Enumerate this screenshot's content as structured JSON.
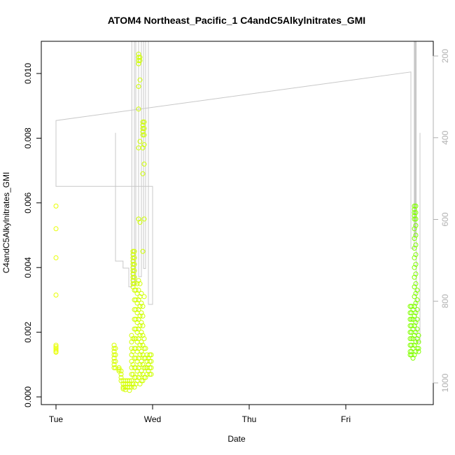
{
  "chart_data": {
    "type": "scatter",
    "title": "ATOM4 Northeast_Pacific_1 C4andC5Alkylnitrates_GMI",
    "xlabel": "Date",
    "ylabel": "C4andC5Alkylnitrates_GMI",
    "x_ticks": [
      "Tue",
      "Wed",
      "Thu",
      "Fri"
    ],
    "ylim": [
      -0.0002,
      0.011
    ],
    "y_ticks": [
      0.0,
      0.002,
      0.004,
      0.006,
      0.008,
      0.01
    ],
    "y_tick_labels": [
      "0.000",
      "0.002",
      "0.004",
      "0.006",
      "0.008",
      "0.010"
    ],
    "y2_ticks": [
      200,
      400,
      600,
      800,
      1000
    ],
    "y2_tick_labels": [
      "200",
      "400",
      "600",
      "800",
      "1000"
    ],
    "y2_reversed": true,
    "grid": false,
    "colors": {
      "points_start": "#e8ff00",
      "points_end": "#7fff00",
      "secondary_line": "#c8c8c8",
      "secondary_axis": "#b0b0b0"
    },
    "points": [
      {
        "t": "Tue 00:00",
        "v": [
          0.0059,
          0.0052,
          0.0043,
          0.00315,
          0.0016,
          0.00155,
          0.0015,
          0.00145,
          0.0014,
          0.00138
        ]
      },
      {
        "t": "Tue 14:26",
        "v": [
          0.0016,
          0.0015,
          0.0014,
          0.0013,
          0.0012,
          0.0011,
          0.001,
          0.0009
        ]
      },
      {
        "t": "Tue 14:47",
        "v": [
          0.0015,
          0.0013,
          0.0011,
          0.0009
        ]
      },
      {
        "t": "Tue 15:39",
        "v": [
          0.0009,
          0.00085,
          0.0008
        ]
      },
      {
        "t": "Tue 16:10",
        "v": [
          0.0008,
          0.0007,
          0.0006,
          0.0005
        ]
      },
      {
        "t": "Tue 16:42",
        "v": [
          0.0005,
          0.0004,
          0.0003,
          0.00025
        ]
      },
      {
        "t": "Tue 17:13",
        "v": [
          0.0005,
          0.0004,
          0.0003,
          0.00022
        ]
      },
      {
        "t": "Tue 17:44",
        "v": [
          0.0005,
          0.0004,
          0.0003
        ]
      },
      {
        "t": "Tue 18:16",
        "v": [
          0.0005,
          0.0004,
          0.0003,
          0.0002
        ]
      },
      {
        "t": "Tue 18:47",
        "v": [
          0.0019,
          0.0017,
          0.0015,
          0.0013,
          0.0011,
          0.0009,
          0.0007,
          0.0005,
          0.0003
        ]
      },
      {
        "t": "Tue 19:08",
        "v": [
          0.0045,
          0.0044,
          0.0043,
          0.0042,
          0.0041,
          0.004,
          0.0039,
          0.0038,
          0.0037,
          0.0036,
          0.0035,
          0.0034,
          0.0018,
          0.0014,
          0.001,
          0.0007,
          0.0004
        ]
      },
      {
        "t": "Tue 19:29",
        "v": [
          0.0045,
          0.0043,
          0.0041,
          0.0039,
          0.0037,
          0.0035,
          0.0033,
          0.003,
          0.0027,
          0.0024,
          0.0021,
          0.0018,
          0.0015,
          0.0012,
          0.0009,
          0.0006,
          0.0003
        ]
      },
      {
        "t": "Tue 19:50",
        "v": [
          0.0033,
          0.003,
          0.0027,
          0.0024,
          0.0021,
          0.0018,
          0.0015,
          0.0012,
          0.0009,
          0.0006,
          0.0004
        ]
      },
      {
        "t": "Tue 20:10",
        "v": [
          0.0035,
          0.0032,
          0.0029,
          0.0026,
          0.0023,
          0.002,
          0.0017,
          0.0014,
          0.0011,
          0.0008,
          0.0005
        ]
      },
      {
        "t": "Tue 20:31",
        "v": [
          0.0106,
          0.0105,
          0.0104,
          0.0103,
          0.0096,
          0.0089,
          0.0077,
          0.0055,
          0.0036,
          0.0033,
          0.003,
          0.0027,
          0.0024,
          0.0021,
          0.0018,
          0.0015,
          0.0012,
          0.0009,
          0.0006
        ]
      },
      {
        "t": "Tue 20:52",
        "v": [
          0.0105,
          0.0104,
          0.0098,
          0.0079,
          0.0054,
          0.0035,
          0.0031,
          0.0028,
          0.0025,
          0.0022,
          0.0019,
          0.0016,
          0.0013,
          0.001,
          0.0007,
          0.0004
        ]
      },
      {
        "t": "Tue 21:13",
        "v": [
          0.0032,
          0.0029,
          0.0026,
          0.0023,
          0.002,
          0.0017,
          0.0014,
          0.0011,
          0.0008,
          0.0005
        ]
      },
      {
        "t": "Tue 21:34",
        "v": [
          0.0085,
          0.0084,
          0.0083,
          0.0082,
          0.0081,
          0.0077,
          0.0069,
          0.0045,
          0.0028,
          0.0025,
          0.0022,
          0.0019,
          0.0016,
          0.0013,
          0.001,
          0.0007,
          0.0005
        ]
      },
      {
        "t": "Tue 21:55",
        "v": [
          0.0085,
          0.0083,
          0.0081,
          0.0078,
          0.0072,
          0.0055,
          0.0031,
          0.0018,
          0.0015,
          0.0012,
          0.0009,
          0.0006
        ]
      },
      {
        "t": "Tue 22:16",
        "v": [
          0.0015,
          0.0012,
          0.0009,
          0.0006
        ]
      },
      {
        "t": "Tue 22:37",
        "v": [
          0.0013,
          0.0011,
          0.0009,
          0.0007
        ]
      },
      {
        "t": "Tue 22:57",
        "v": [
          0.0012,
          0.001,
          0.0008
        ]
      },
      {
        "t": "Tue 23:18",
        "v": [
          0.0013,
          0.0011,
          0.0009,
          0.0007
        ]
      },
      {
        "t": "Tue 23:39",
        "v": [
          0.0013,
          0.0011,
          0.0009,
          0.0007
        ]
      },
      {
        "t": "Fri 16:00",
        "v": [
          0.0028,
          0.0026,
          0.0024,
          0.0022,
          0.002,
          0.0018,
          0.0016,
          0.0014,
          0.0013
        ]
      },
      {
        "t": "Fri 16:21",
        "v": [
          0.0028,
          0.0026,
          0.0024,
          0.0022,
          0.002,
          0.0018,
          0.0016,
          0.0014,
          0.0013
        ]
      },
      {
        "t": "Fri 16:42",
        "v": [
          0.0027,
          0.0024,
          0.0021,
          0.0018,
          0.0015,
          0.0012
        ]
      },
      {
        "t": "Fri 17:03",
        "v": [
          0.0059,
          0.0058,
          0.0057,
          0.0056,
          0.0055,
          0.0052,
          0.0049,
          0.0046,
          0.0043,
          0.004,
          0.0037,
          0.0034,
          0.0031,
          0.0028,
          0.0025,
          0.0022,
          0.0019,
          0.0016,
          0.0013
        ]
      },
      {
        "t": "Fri 17:23",
        "v": [
          0.0059,
          0.0057,
          0.0055,
          0.0053,
          0.005,
          0.0047,
          0.0044,
          0.0041,
          0.0038,
          0.0035,
          0.0032,
          0.0029,
          0.0026,
          0.0023,
          0.002,
          0.0017,
          0.0014
        ]
      },
      {
        "t": "Fri 17:44",
        "v": [
          0.0033,
          0.003,
          0.0027,
          0.0024,
          0.0021,
          0.0018,
          0.0015
        ]
      },
      {
        "t": "Fri 18:05",
        "v": [
          0.0019,
          0.0017,
          0.0015,
          0.0014
        ]
      }
    ],
    "secondary_line": [
      [
        "Tue 14:47",
        388
      ],
      [
        "Tue 14:47",
        702
      ],
      [
        "Tue 16:40",
        702
      ],
      [
        "Tue 16:40",
        719
      ],
      [
        "Tue 18:05",
        719
      ],
      [
        "Tue 18:05",
        765
      ],
      [
        "Tue 18:50",
        765
      ],
      [
        "Tue 18:50",
        100
      ],
      [
        "Tue 19:29",
        100
      ],
      [
        "Tue 19:29",
        760
      ],
      [
        "Tue 19:50",
        760
      ],
      [
        "Tue 19:50",
        100
      ],
      [
        "Tue 20:31",
        100
      ],
      [
        "Tue 20:31",
        740
      ],
      [
        "Tue 21:13",
        740
      ],
      [
        "Tue 21:13",
        100
      ],
      [
        "Tue 21:45",
        100
      ],
      [
        "Tue 21:45",
        720
      ],
      [
        "Tue 22:16",
        720
      ],
      [
        "Tue 22:16",
        100
      ],
      [
        "Tue 22:57",
        100
      ],
      [
        "Tue 22:57",
        808
      ],
      [
        "Wed 00:00",
        808
      ],
      [
        "Wed 00:00",
        519
      ],
      [
        "Tue 00:00",
        519
      ],
      [
        "Tue 00:00",
        358
      ],
      [
        "Fri 16:10",
        239
      ],
      [
        "Fri 16:10",
        671
      ],
      [
        "Fri 17:00",
        671
      ],
      [
        "Fri 17:00",
        100
      ],
      [
        "Fri 17:10",
        100
      ],
      [
        "Fri 17:10",
        640
      ],
      [
        "Fri 17:20",
        640
      ],
      [
        "Fri 17:20",
        100
      ],
      [
        "Fri 17:30",
        100
      ],
      [
        "Fri 17:30",
        900
      ],
      [
        "Fri 18:26",
        900
      ],
      [
        "Fri 18:26",
        388
      ]
    ]
  }
}
